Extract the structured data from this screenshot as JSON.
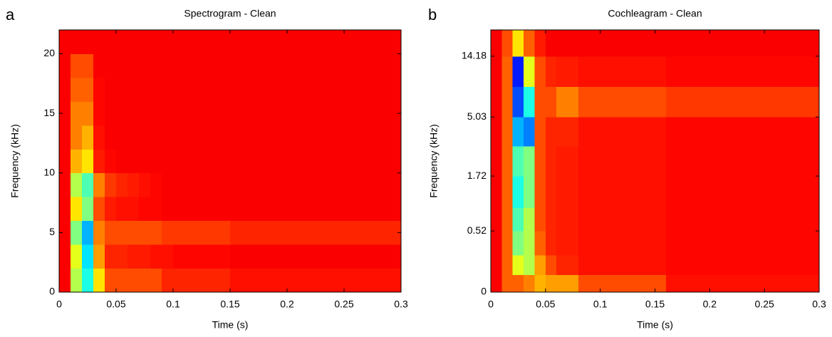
{
  "chart_data": [
    {
      "type": "heatmap",
      "panel": "a",
      "title": "Spectrogram - Clean",
      "xlabel": "Time (s)",
      "ylabel": "Frequency (kHz)",
      "colormap": "jet",
      "yscale": "linear",
      "xlim": [
        0,
        0.3
      ],
      "ylim": [
        0,
        22
      ],
      "xticks": [
        0,
        0.05,
        0.1,
        0.15,
        0.2,
        0.25,
        0.3
      ],
      "yticks": [
        0,
        5,
        10,
        15,
        20
      ],
      "clim": [
        0,
        1
      ],
      "xbins": [
        0,
        0.01,
        0.02,
        0.03,
        0.04,
        0.05,
        0.06,
        0.07,
        0.08,
        0.09,
        0.1,
        0.11,
        0.12,
        0.13,
        0.14,
        0.15,
        0.16,
        0.17,
        0.18,
        0.19,
        0.2,
        0.21,
        0.22,
        0.23,
        0.24,
        0.25,
        0.26,
        0.27,
        0.28,
        0.29,
        0.3
      ],
      "ybins": [
        0,
        2,
        4,
        6,
        8,
        10,
        12,
        14,
        16,
        18,
        20,
        22
      ],
      "z": [
        [
          0.88,
          0.55,
          0.4,
          0.65,
          0.8,
          0.8,
          0.8,
          0.8,
          0.8,
          0.84,
          0.84,
          0.84,
          0.84,
          0.84,
          0.84,
          0.86,
          0.86,
          0.86,
          0.86,
          0.86,
          0.86,
          0.86,
          0.86,
          0.86,
          0.86,
          0.86,
          0.86,
          0.86,
          0.86,
          0.86
        ],
        [
          0.88,
          0.6,
          0.35,
          0.72,
          0.84,
          0.84,
          0.85,
          0.85,
          0.86,
          0.86,
          0.87,
          0.87,
          0.87,
          0.87,
          0.87,
          0.88,
          0.88,
          0.88,
          0.88,
          0.88,
          0.88,
          0.88,
          0.88,
          0.88,
          0.88,
          0.88,
          0.88,
          0.88,
          0.88,
          0.88
        ],
        [
          0.88,
          0.5,
          0.3,
          0.75,
          0.8,
          0.8,
          0.8,
          0.8,
          0.8,
          0.82,
          0.82,
          0.82,
          0.82,
          0.82,
          0.82,
          0.84,
          0.84,
          0.84,
          0.84,
          0.84,
          0.84,
          0.84,
          0.84,
          0.84,
          0.84,
          0.84,
          0.84,
          0.84,
          0.84,
          0.84
        ],
        [
          0.88,
          0.65,
          0.5,
          0.8,
          0.85,
          0.86,
          0.86,
          0.87,
          0.87,
          0.88,
          0.88,
          0.88,
          0.88,
          0.88,
          0.88,
          0.88,
          0.88,
          0.88,
          0.88,
          0.88,
          0.88,
          0.88,
          0.88,
          0.88,
          0.88,
          0.88,
          0.88,
          0.88,
          0.88,
          0.88
        ],
        [
          0.88,
          0.55,
          0.45,
          0.75,
          0.82,
          0.84,
          0.85,
          0.86,
          0.87,
          0.88,
          0.88,
          0.88,
          0.88,
          0.88,
          0.88,
          0.88,
          0.88,
          0.88,
          0.88,
          0.88,
          0.88,
          0.88,
          0.88,
          0.88,
          0.88,
          0.88,
          0.88,
          0.88,
          0.88,
          0.88
        ],
        [
          0.88,
          0.7,
          0.65,
          0.85,
          0.87,
          0.88,
          0.88,
          0.88,
          0.88,
          0.88,
          0.88,
          0.88,
          0.88,
          0.88,
          0.88,
          0.88,
          0.88,
          0.88,
          0.88,
          0.88,
          0.88,
          0.88,
          0.88,
          0.88,
          0.88,
          0.88,
          0.88,
          0.88,
          0.88,
          0.88
        ],
        [
          0.88,
          0.75,
          0.7,
          0.86,
          0.88,
          0.88,
          0.88,
          0.88,
          0.88,
          0.88,
          0.88,
          0.88,
          0.88,
          0.88,
          0.88,
          0.88,
          0.88,
          0.88,
          0.88,
          0.88,
          0.88,
          0.88,
          0.88,
          0.88,
          0.88,
          0.88,
          0.88,
          0.88,
          0.88,
          0.88
        ],
        [
          0.88,
          0.75,
          0.75,
          0.87,
          0.88,
          0.88,
          0.88,
          0.88,
          0.88,
          0.88,
          0.88,
          0.88,
          0.88,
          0.88,
          0.88,
          0.88,
          0.88,
          0.88,
          0.88,
          0.88,
          0.88,
          0.88,
          0.88,
          0.88,
          0.88,
          0.88,
          0.88,
          0.88,
          0.88,
          0.88
        ],
        [
          0.88,
          0.78,
          0.78,
          0.87,
          0.88,
          0.88,
          0.88,
          0.88,
          0.88,
          0.88,
          0.88,
          0.88,
          0.88,
          0.88,
          0.88,
          0.88,
          0.88,
          0.88,
          0.88,
          0.88,
          0.88,
          0.88,
          0.88,
          0.88,
          0.88,
          0.88,
          0.88,
          0.88,
          0.88,
          0.88
        ],
        [
          0.88,
          0.8,
          0.8,
          0.88,
          0.88,
          0.88,
          0.88,
          0.88,
          0.88,
          0.88,
          0.88,
          0.88,
          0.88,
          0.88,
          0.88,
          0.88,
          0.88,
          0.88,
          0.88,
          0.88,
          0.88,
          0.88,
          0.88,
          0.88,
          0.88,
          0.88,
          0.88,
          0.88,
          0.88,
          0.88
        ],
        [
          0.88,
          0.88,
          0.88,
          0.88,
          0.88,
          0.88,
          0.88,
          0.88,
          0.88,
          0.88,
          0.88,
          0.88,
          0.88,
          0.88,
          0.88,
          0.88,
          0.88,
          0.88,
          0.88,
          0.88,
          0.88,
          0.88,
          0.88,
          0.88,
          0.88,
          0.88,
          0.88,
          0.88,
          0.88,
          0.88
        ]
      ]
    },
    {
      "type": "heatmap",
      "panel": "b",
      "title": "Cochleagram - Clean",
      "xlabel": "Time (s)",
      "ylabel": "Frequency (kHz)",
      "colormap": "jet",
      "yscale": "cochlear",
      "xlim": [
        0,
        0.3
      ],
      "ylim": [
        0,
        22
      ],
      "xticks": [
        0,
        0.05,
        0.1,
        0.15,
        0.2,
        0.25,
        0.3
      ],
      "yticks": [
        0,
        0.52,
        1.72,
        5.03,
        14.18
      ],
      "clim": [
        0,
        1
      ],
      "xbins": [
        0,
        0.01,
        0.02,
        0.03,
        0.04,
        0.05,
        0.06,
        0.07,
        0.08,
        0.09,
        0.1,
        0.11,
        0.12,
        0.13,
        0.14,
        0.15,
        0.16,
        0.17,
        0.18,
        0.19,
        0.2,
        0.21,
        0.22,
        0.23,
        0.24,
        0.25,
        0.26,
        0.27,
        0.28,
        0.29,
        0.3
      ],
      "ybins": [
        0,
        0.1,
        0.25,
        0.52,
        0.9,
        1.72,
        3,
        5.03,
        8.5,
        14.18,
        22
      ],
      "z": [
        [
          0.88,
          0.78,
          0.78,
          0.75,
          0.7,
          0.72,
          0.72,
          0.72,
          0.8,
          0.8,
          0.8,
          0.8,
          0.8,
          0.8,
          0.8,
          0.8,
          0.86,
          0.86,
          0.86,
          0.86,
          0.86,
          0.86,
          0.86,
          0.86,
          0.86,
          0.86,
          0.86,
          0.86,
          0.86,
          0.86
        ],
        [
          0.88,
          0.78,
          0.6,
          0.55,
          0.72,
          0.8,
          0.84,
          0.84,
          0.86,
          0.86,
          0.86,
          0.86,
          0.86,
          0.86,
          0.86,
          0.86,
          0.87,
          0.87,
          0.87,
          0.87,
          0.87,
          0.87,
          0.87,
          0.87,
          0.87,
          0.87,
          0.87,
          0.87,
          0.87,
          0.87
        ],
        [
          0.88,
          0.78,
          0.5,
          0.55,
          0.78,
          0.84,
          0.85,
          0.85,
          0.86,
          0.86,
          0.86,
          0.86,
          0.86,
          0.86,
          0.86,
          0.86,
          0.87,
          0.87,
          0.87,
          0.87,
          0.87,
          0.87,
          0.87,
          0.87,
          0.87,
          0.87,
          0.87,
          0.87,
          0.87,
          0.87
        ],
        [
          0.88,
          0.78,
          0.45,
          0.55,
          0.8,
          0.84,
          0.85,
          0.85,
          0.86,
          0.86,
          0.86,
          0.86,
          0.86,
          0.86,
          0.86,
          0.86,
          0.87,
          0.87,
          0.87,
          0.87,
          0.87,
          0.87,
          0.87,
          0.87,
          0.87,
          0.87,
          0.87,
          0.87,
          0.87,
          0.87
        ],
        [
          0.88,
          0.78,
          0.4,
          0.5,
          0.8,
          0.84,
          0.85,
          0.85,
          0.86,
          0.86,
          0.86,
          0.86,
          0.86,
          0.86,
          0.86,
          0.86,
          0.87,
          0.87,
          0.87,
          0.87,
          0.87,
          0.87,
          0.87,
          0.87,
          0.87,
          0.87,
          0.87,
          0.87,
          0.87,
          0.87
        ],
        [
          0.88,
          0.78,
          0.45,
          0.5,
          0.8,
          0.84,
          0.85,
          0.85,
          0.86,
          0.86,
          0.86,
          0.86,
          0.86,
          0.86,
          0.86,
          0.86,
          0.87,
          0.87,
          0.87,
          0.87,
          0.87,
          0.87,
          0.87,
          0.87,
          0.87,
          0.87,
          0.87,
          0.87,
          0.87,
          0.87
        ],
        [
          0.88,
          0.78,
          0.3,
          0.25,
          0.8,
          0.84,
          0.84,
          0.84,
          0.86,
          0.86,
          0.86,
          0.86,
          0.86,
          0.86,
          0.86,
          0.86,
          0.87,
          0.87,
          0.87,
          0.87,
          0.87,
          0.87,
          0.87,
          0.87,
          0.87,
          0.87,
          0.87,
          0.87,
          0.87,
          0.87
        ],
        [
          0.88,
          0.78,
          0.2,
          0.4,
          0.8,
          0.8,
          0.75,
          0.75,
          0.8,
          0.8,
          0.8,
          0.8,
          0.8,
          0.8,
          0.8,
          0.8,
          0.82,
          0.82,
          0.82,
          0.82,
          0.82,
          0.82,
          0.82,
          0.82,
          0.82,
          0.82,
          0.82,
          0.82,
          0.82,
          0.82
        ],
        [
          0.88,
          0.78,
          0.15,
          0.6,
          0.8,
          0.84,
          0.85,
          0.85,
          0.86,
          0.86,
          0.86,
          0.86,
          0.86,
          0.86,
          0.86,
          0.86,
          0.87,
          0.87,
          0.87,
          0.87,
          0.87,
          0.87,
          0.87,
          0.87,
          0.87,
          0.87,
          0.87,
          0.87,
          0.87,
          0.87
        ],
        [
          0.88,
          0.8,
          0.65,
          0.78,
          0.85,
          0.88,
          0.88,
          0.88,
          0.88,
          0.88,
          0.88,
          0.88,
          0.88,
          0.88,
          0.88,
          0.88,
          0.88,
          0.88,
          0.88,
          0.88,
          0.88,
          0.88,
          0.88,
          0.88,
          0.88,
          0.88,
          0.88,
          0.88,
          0.88,
          0.88
        ]
      ]
    }
  ]
}
